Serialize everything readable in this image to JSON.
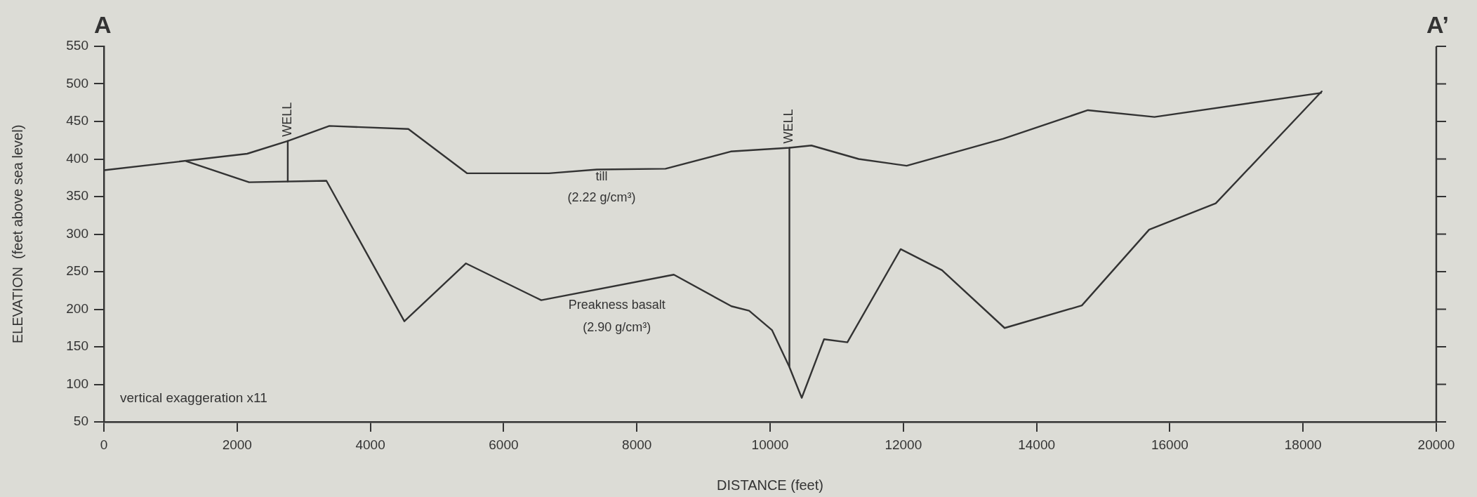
{
  "chart_data": {
    "type": "line",
    "xlabel": "DISTANCE (feet)",
    "ylabel": "ELEVATION  (feet above sea level)",
    "xlim": [
      0,
      20000
    ],
    "xticks": [
      0,
      2000,
      4000,
      6000,
      8000,
      10000,
      12000,
      14000,
      16000,
      18000,
      20000
    ],
    "ylim": [
      50,
      550
    ],
    "yticks": [
      50,
      100,
      150,
      200,
      250,
      300,
      350,
      400,
      450,
      500,
      550
    ],
    "grid": false,
    "legend": false,
    "marker": "none",
    "line_style": "solid",
    "series": [
      {
        "color": "#333333",
        "x": [
          0,
          2150,
          2760,
          3385,
          4570,
          5450,
          6680,
          7400,
          8430,
          9410,
          10290,
          10620,
          11330,
          12050,
          13500,
          14770,
          15770,
          18270
        ],
        "values": [
          385,
          407,
          424,
          444,
          440,
          381,
          381,
          386,
          387,
          410,
          415,
          418,
          400,
          391,
          427,
          465,
          456,
          488
        ]
      },
      {
        "color": "#333333",
        "x": [
          1235,
          2180,
          3340,
          4510,
          5435,
          6565,
          8555,
          9420,
          9685,
          10030,
          10285,
          10475,
          10810,
          11160,
          11960,
          12580,
          13520,
          14680,
          15690,
          16690,
          18280
        ],
        "values": [
          397,
          369,
          371,
          184,
          261,
          212,
          246,
          204,
          198,
          172,
          124,
          82,
          160,
          156,
          280,
          252,
          175,
          205,
          306,
          341,
          490
        ]
      },
      {
        "name": "WELL",
        "color": "#333333",
        "x": [
          2760,
          2760
        ],
        "values": [
          424,
          370
        ]
      },
      {
        "name": "WELL",
        "color": "#333333",
        "x": [
          10290,
          10290
        ],
        "values": [
          415,
          124
        ]
      }
    ],
    "annotations": [
      "A",
      "A’",
      "vertical exaggeration x11",
      "till",
      "(2.22 g/cm³)",
      "Preakness basalt",
      "(2.90 g/cm³)"
    ]
  }
}
